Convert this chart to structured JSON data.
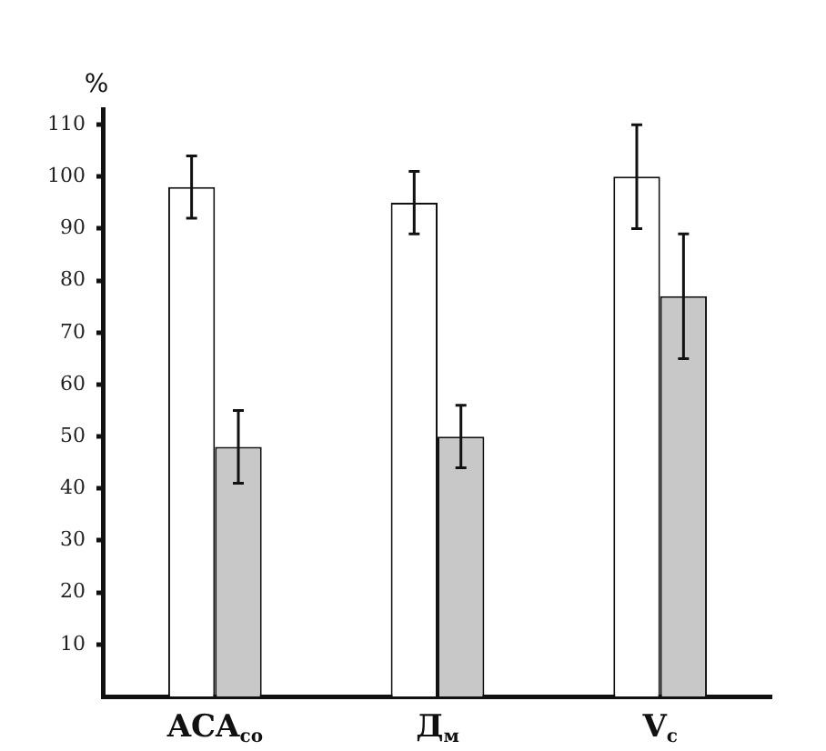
{
  "chart_data": {
    "type": "bar",
    "ylabel": "%",
    "categories": [
      "ACA$_{co}$",
      "Д$_{м}$",
      "V$_{c}$"
    ],
    "series": [
      {
        "color": "#ffffff",
        "values": [
          98,
          95,
          100
        ],
        "errors": [
          6,
          6,
          10
        ]
      },
      {
        "color": "#c8c8c8",
        "values": [
          48,
          50,
          77
        ],
        "errors": [
          7,
          6,
          12
        ]
      }
    ],
    "ylim": [
      0,
      113
    ],
    "yticks": [
      10,
      20,
      30,
      40,
      50,
      60,
      70,
      80,
      90,
      100,
      110
    ],
    "grid": false,
    "legend": false
  }
}
